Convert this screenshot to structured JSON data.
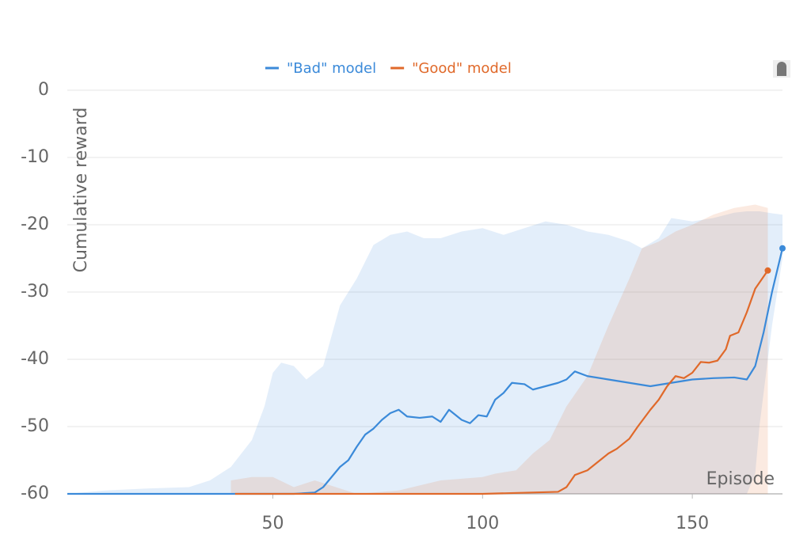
{
  "chart_data": {
    "type": "line",
    "y_label": "Cumulative reward",
    "x_label": "Episode",
    "xlim": [
      1,
      171.5
    ],
    "xticks": [
      50,
      100,
      150
    ],
    "ylim": [
      -60,
      0
    ],
    "yticks": [
      0,
      -10,
      -20,
      -30,
      -40,
      -50,
      -60
    ],
    "grid": true,
    "legend": "top",
    "series": [
      {
        "name": "\"Bad\" model",
        "color": "#3b8ad9",
        "x": [
          1,
          40,
          55,
          60,
          62,
          64,
          66,
          68,
          70,
          72,
          74,
          76,
          78,
          80,
          82,
          85,
          88,
          90,
          92,
          95,
          97,
          99,
          101,
          103,
          105,
          107,
          110,
          112,
          115,
          118,
          120,
          122,
          125,
          130,
          135,
          140,
          145,
          150,
          155,
          160,
          163,
          165,
          167,
          169,
          171.5
        ],
        "values": [
          -60,
          -60,
          -60,
          -59.8,
          -59,
          -57.5,
          -56,
          -55,
          -53,
          -51.2,
          -50.3,
          -49,
          -48,
          -47.5,
          -48.5,
          -48.7,
          -48.5,
          -49.3,
          -47.5,
          -49,
          -49.5,
          -48.3,
          -48.5,
          -46,
          -45,
          -43.5,
          -43.7,
          -44.5,
          -44,
          -43.5,
          -43,
          -41.8,
          -42.5,
          -43,
          -43.5,
          -44,
          -43.5,
          -43,
          -42.8,
          -42.7,
          -43,
          -41,
          -36,
          -30,
          -23.5
        ],
        "band_x": [
          1,
          10,
          20,
          30,
          35,
          40,
          45,
          48,
          50,
          52,
          55,
          58,
          62,
          66,
          70,
          74,
          78,
          82,
          86,
          90,
          95,
          100,
          105,
          110,
          115,
          120,
          125,
          130,
          135,
          138,
          142,
          145,
          150,
          155,
          160,
          163,
          165,
          166,
          169,
          171.5
        ],
        "band_upper": [
          -60,
          -59.5,
          -59.2,
          -59,
          -58,
          -56,
          -52,
          -47,
          -42,
          -40.5,
          -41,
          -43,
          -41,
          -32,
          -28,
          -23,
          -21.5,
          -21,
          -22,
          -22,
          -21,
          -20.5,
          -21.5,
          -20.5,
          -19.5,
          -20,
          -21,
          -21.5,
          -22.5,
          -23.5,
          -22,
          -19,
          -19.5,
          -19,
          -18.2,
          -18,
          -18,
          -18,
          -18.3,
          -18.5
        ],
        "band_lower": [
          -60,
          -60,
          -60,
          -60,
          -60,
          -60,
          -60,
          -60,
          -60,
          -60,
          -60,
          -60,
          -60,
          -60,
          -60,
          -60,
          -60,
          -60,
          -60,
          -60,
          -60,
          -60,
          -60,
          -60,
          -60,
          -60,
          -60,
          -60,
          -60,
          -60,
          -60,
          -60,
          -60,
          -60,
          -60,
          -60,
          -57,
          -50,
          -35,
          -25
        ]
      },
      {
        "name": "\"Good\" model",
        "color": "#e0692a",
        "x": [
          41,
          60,
          80,
          100,
          118,
          120,
          122,
          125,
          127,
          130,
          132,
          135,
          137,
          140,
          142,
          144,
          146,
          148,
          150,
          152,
          154,
          156,
          158,
          159,
          161,
          163,
          165,
          168
        ],
        "values": [
          -60,
          -60,
          -60,
          -60,
          -59.7,
          -59,
          -57.2,
          -56.5,
          -55.5,
          -54,
          -53.3,
          -51.8,
          -50,
          -47.5,
          -46,
          -44,
          -42.5,
          -42.8,
          -42,
          -40.4,
          -40.5,
          -40.2,
          -38.5,
          -36.5,
          -36,
          -33,
          -29.5,
          -26.8
        ],
        "band_x": [
          40,
          45,
          50,
          55,
          60,
          65,
          70,
          80,
          90,
          100,
          103,
          108,
          112,
          116,
          120,
          125,
          130,
          135,
          138,
          142,
          146,
          150,
          155,
          160,
          165,
          168
        ],
        "band_upper": [
          -58,
          -57.5,
          -57.5,
          -59,
          -58,
          -59,
          -60,
          -59.5,
          -58,
          -57.5,
          -57,
          -56.5,
          -54,
          -52,
          -47,
          -42.5,
          -35,
          -28,
          -23.5,
          -22.5,
          -21,
          -20,
          -18.5,
          -17.5,
          -17,
          -17.5
        ],
        "band_lower": [
          -60,
          -60,
          -60,
          -60,
          -60,
          -60,
          -60,
          -60,
          -60,
          -60,
          -60,
          -60,
          -60,
          -60,
          -60,
          -60,
          -60,
          -60,
          -60,
          -60,
          -60,
          -60,
          -60,
          -60,
          -60,
          -60
        ]
      }
    ]
  }
}
